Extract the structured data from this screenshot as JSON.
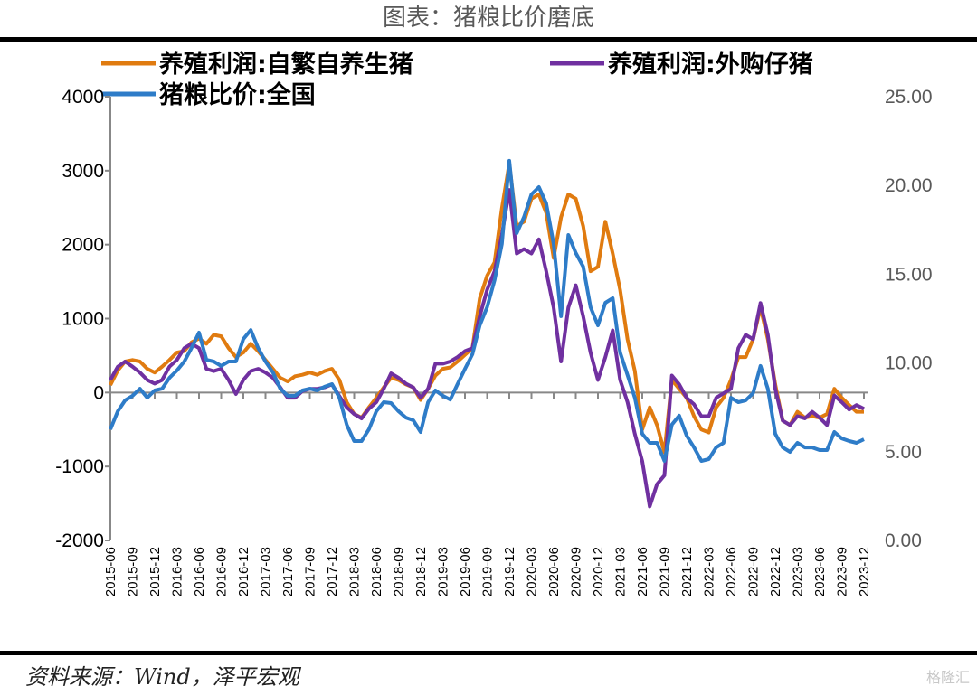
{
  "chart_data": {
    "type": "line",
    "title": "图表：猪粮比价磨底",
    "x_start": "2015-06",
    "x_frequency": "monthly",
    "x_labels": [
      "2015-06",
      "2015-09",
      "2015-12",
      "2016-03",
      "2016-06",
      "2016-09",
      "2016-12",
      "2017-03",
      "2017-06",
      "2017-09",
      "2017-12",
      "2018-03",
      "2018-06",
      "2018-09",
      "2018-12",
      "2019-03",
      "2019-06",
      "2019-09",
      "2019-12",
      "2020-03",
      "2020-06",
      "2020-09",
      "2020-12",
      "2021-03",
      "2021-06",
      "2021-09",
      "2021-12",
      "2022-03",
      "2022-06",
      "2022-09",
      "2022-12",
      "2023-03",
      "2023-06",
      "2023-09",
      "2023-12"
    ],
    "y_left": {
      "ylim": [
        -2000,
        4000
      ],
      "ticks": [
        "4000",
        "3000",
        "2000",
        "1000",
        "0",
        "-1000",
        "-2000"
      ]
    },
    "y_right": {
      "ylim": [
        0,
        25
      ],
      "ticks": [
        "25.00",
        "20.00",
        "15.00",
        "10.00",
        "5.00",
        "0.00"
      ]
    },
    "series": [
      {
        "name": "养殖利润:自繁自养生猪",
        "axis": "left",
        "color": "#E07B10",
        "values": [
          100,
          300,
          420,
          440,
          420,
          320,
          270,
          350,
          440,
          540,
          560,
          680,
          730,
          660,
          780,
          760,
          600,
          480,
          540,
          660,
          560,
          440,
          320,
          200,
          150,
          220,
          240,
          270,
          240,
          290,
          320,
          170,
          -130,
          -290,
          -340,
          -200,
          -70,
          70,
          200,
          170,
          110,
          70,
          -100,
          50,
          230,
          320,
          340,
          420,
          510,
          600,
          1270,
          1580,
          1760,
          2490,
          3100,
          2250,
          2310,
          2620,
          2680,
          2430,
          1820,
          2370,
          2680,
          2620,
          2250,
          1640,
          1700,
          2310,
          1880,
          1390,
          720,
          290,
          -500,
          -200,
          -440,
          -810,
          170,
          50,
          -70,
          -320,
          -500,
          -540,
          -200,
          -70,
          170,
          480,
          480,
          720,
          1150,
          720,
          110,
          -380,
          -440,
          -260,
          -340,
          -320,
          -340,
          -290,
          50,
          -70,
          -170,
          -260,
          -260
        ]
      },
      {
        "name": "养殖利润:外购仔猪",
        "axis": "left",
        "color": "#7030A0",
        "values": [
          170,
          350,
          420,
          350,
          270,
          170,
          120,
          170,
          350,
          440,
          600,
          660,
          600,
          320,
          290,
          320,
          170,
          -20,
          170,
          290,
          320,
          270,
          200,
          70,
          -70,
          -70,
          20,
          50,
          50,
          70,
          110,
          -50,
          -200,
          -290,
          -350,
          -220,
          -130,
          50,
          260,
          200,
          120,
          70,
          -70,
          50,
          390,
          390,
          420,
          480,
          560,
          600,
          1030,
          1390,
          1640,
          2130,
          2740,
          1880,
          1940,
          1880,
          2070,
          1640,
          1150,
          420,
          1150,
          1450,
          1030,
          540,
          170,
          480,
          840,
          170,
          -130,
          -560,
          -930,
          -1540,
          -1240,
          -1120,
          230,
          110,
          -70,
          -160,
          -320,
          -320,
          -70,
          -10,
          50,
          600,
          780,
          720,
          1210,
          780,
          50,
          -380,
          -440,
          -320,
          -350,
          -260,
          -340,
          -440,
          -40,
          -130,
          -230,
          -170,
          -220
        ]
      },
      {
        "name": "猪粮比价:全国",
        "axis": "right",
        "color": "#2E7CC8",
        "values": [
          6.26,
          7.28,
          7.89,
          8.15,
          8.55,
          8.04,
          8.45,
          8.55,
          9.16,
          9.57,
          10.08,
          10.85,
          11.71,
          10.18,
          10.08,
          9.83,
          10.08,
          10.08,
          11.35,
          11.86,
          10.85,
          10.08,
          9.47,
          8.55,
          8.15,
          8.15,
          8.45,
          8.55,
          8.45,
          8.66,
          8.81,
          8.04,
          6.52,
          5.6,
          5.6,
          6.26,
          7.28,
          7.79,
          7.74,
          7.28,
          6.92,
          6.77,
          6.11,
          7.79,
          8.45,
          8.15,
          7.94,
          8.81,
          9.67,
          10.49,
          12.12,
          13.14,
          14.66,
          16.7,
          21.39,
          17.31,
          18.23,
          19.5,
          19.91,
          18.99,
          16.7,
          12.63,
          17.21,
          16.19,
          15.43,
          13.14,
          12.12,
          13.39,
          13.65,
          10.59,
          9.32,
          8.04,
          6.01,
          5.5,
          5.5,
          4.48,
          6.52,
          7.03,
          5.91,
          5.24,
          4.48,
          4.58,
          5.24,
          5.5,
          8.04,
          7.79,
          7.89,
          8.3,
          9.83,
          8.55,
          6.01,
          5.24,
          4.99,
          5.5,
          5.24,
          5.24,
          5.09,
          5.09,
          6.11,
          5.75,
          5.6,
          5.5,
          5.7
        ]
      }
    ],
    "legend": "top",
    "grid": false
  },
  "source": "资料来源：Wind，泽平宏观",
  "watermark": "格隆汇"
}
